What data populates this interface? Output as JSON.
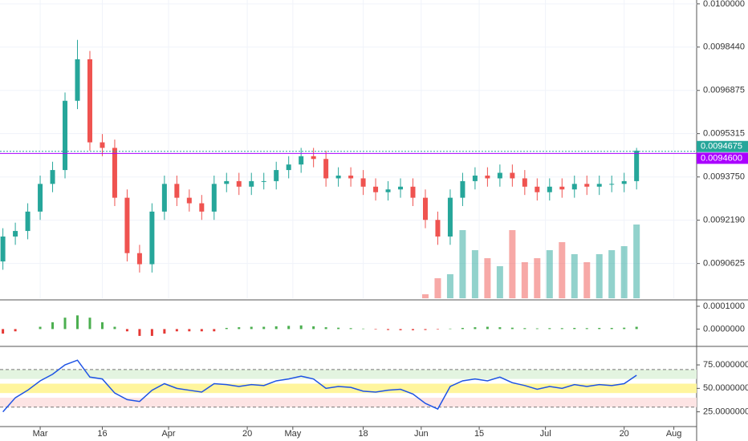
{
  "chart_data": [
    {
      "type": "candlestick",
      "x": [
        -9,
        -6,
        -3,
        0,
        3,
        6,
        9,
        12,
        15,
        18,
        21,
        24,
        27,
        30,
        33,
        36,
        39,
        42,
        45,
        48,
        51,
        54,
        57,
        60,
        63,
        66,
        69,
        72,
        75,
        78,
        81,
        84,
        87,
        90,
        93,
        96,
        99,
        102,
        105,
        108,
        111,
        114,
        117,
        120,
        123,
        126,
        129,
        132,
        135,
        138,
        141,
        144
      ],
      "open": [
        0.00907,
        0.00916,
        0.00918,
        0.00925,
        0.00935,
        0.0094,
        0.00965,
        0.0098,
        0.0095,
        0.00948,
        0.0093,
        0.0091,
        0.00906,
        0.00925,
        0.00935,
        0.0093,
        0.00928,
        0.00925,
        0.00935,
        0.00936,
        0.00934,
        0.00936,
        0.00936,
        0.0094,
        0.00942,
        0.00945,
        0.00944,
        0.00937,
        0.00938,
        0.00937,
        0.00934,
        0.00932,
        0.00933,
        0.00934,
        0.0093,
        0.00922,
        0.00916,
        0.0093,
        0.00936,
        0.00938,
        0.00937,
        0.00939,
        0.00937,
        0.00934,
        0.00932,
        0.00934,
        0.00933,
        0.00935,
        0.00934,
        0.00935,
        0.00935,
        0.00936
      ],
      "high": [
        0.00919,
        0.00921,
        0.00928,
        0.00938,
        0.00943,
        0.00968,
        0.00987,
        0.00983,
        0.00953,
        0.00951,
        0.00933,
        0.00913,
        0.00928,
        0.00938,
        0.00938,
        0.00933,
        0.00931,
        0.00938,
        0.00939,
        0.00939,
        0.00939,
        0.00939,
        0.00943,
        0.00945,
        0.00948,
        0.00948,
        0.00947,
        0.00941,
        0.00941,
        0.0094,
        0.00937,
        0.00936,
        0.00937,
        0.00937,
        0.00933,
        0.00925,
        0.00933,
        0.00939,
        0.00941,
        0.00941,
        0.00942,
        0.00942,
        0.0094,
        0.00937,
        0.00937,
        0.00937,
        0.00938,
        0.00938,
        0.00938,
        0.00938,
        0.00939,
        0.00948
      ],
      "low": [
        0.00904,
        0.00913,
        0.00915,
        0.00922,
        0.00932,
        0.00937,
        0.00962,
        0.00947,
        0.00945,
        0.00927,
        0.00907,
        0.00903,
        0.00903,
        0.00922,
        0.00927,
        0.00925,
        0.00922,
        0.00922,
        0.00932,
        0.00931,
        0.00931,
        0.00933,
        0.00933,
        0.00937,
        0.00939,
        0.00941,
        0.00934,
        0.00934,
        0.00934,
        0.00931,
        0.00929,
        0.00929,
        0.0093,
        0.00927,
        0.00919,
        0.00913,
        0.00913,
        0.00927,
        0.00933,
        0.00934,
        0.00934,
        0.00934,
        0.00931,
        0.00929,
        0.00929,
        0.0093,
        0.0093,
        0.00931,
        0.00931,
        0.00932,
        0.00932,
        0.00933
      ],
      "close": [
        0.00916,
        0.00918,
        0.00925,
        0.00935,
        0.0094,
        0.00965,
        0.0098,
        0.0095,
        0.00948,
        0.0093,
        0.0091,
        0.00906,
        0.00925,
        0.00935,
        0.0093,
        0.00928,
        0.00925,
        0.00935,
        0.00936,
        0.00934,
        0.00936,
        0.00936,
        0.0094,
        0.00942,
        0.00945,
        0.00944,
        0.00937,
        0.00938,
        0.00937,
        0.00934,
        0.00932,
        0.00933,
        0.00934,
        0.0093,
        0.00922,
        0.00916,
        0.0093,
        0.00936,
        0.00938,
        0.00937,
        0.00939,
        0.00937,
        0.00934,
        0.00932,
        0.00934,
        0.00933,
        0.00935,
        0.00934,
        0.00935,
        0.00935,
        0.00936,
        0.00947
      ],
      "up_color": "#26a69a",
      "down_color": "#ef5350",
      "volume": [
        0,
        0,
        0,
        0,
        0,
        0,
        0,
        0,
        0,
        0,
        0,
        0,
        0,
        0,
        0,
        0,
        0,
        0,
        0,
        0,
        0,
        0,
        0,
        0,
        0,
        0,
        0,
        0,
        0,
        0,
        0,
        0,
        0,
        0,
        5,
        25,
        30,
        85,
        60,
        50,
        40,
        85,
        45,
        50,
        60,
        70,
        55,
        45,
        55,
        60,
        65,
        92
      ],
      "volume_lim": [
        0,
        100
      ],
      "xlim": [
        -9.7,
        158.5
      ],
      "ylim": [
        0.008937,
        0.010014
      ],
      "yticks": [
        {
          "value": 0.01,
          "label": "0.0100000"
        },
        {
          "value": 0.009844,
          "label": "0.0098440"
        },
        {
          "value": 0.0096875,
          "label": "0.0096875"
        },
        {
          "value": 0.0095315,
          "label": "0.0095315"
        },
        {
          "value": 0.009375,
          "label": "0.0093750"
        },
        {
          "value": 0.009219,
          "label": "0.0092190"
        },
        {
          "value": 0.0090625,
          "label": "0.0090625"
        }
      ],
      "price_lines": [
        {
          "value": 0.0094675,
          "label": "0.0094675",
          "color": "#26a69a"
        },
        {
          "value": 0.00946,
          "label": "0.0094600",
          "color": "#aa00ff"
        }
      ],
      "grid": true
    },
    {
      "type": "bar",
      "values": [
        -2e-05,
        -1e-05,
        0.0,
        1e-05,
        3e-05,
        5e-05,
        6e-05,
        5e-05,
        3e-05,
        1e-05,
        -1e-05,
        -3e-05,
        -3e-05,
        -2e-05,
        -1e-05,
        -1e-05,
        -1e-05,
        -1e-05,
        5e-06,
        8e-06,
        1e-05,
        1e-05,
        1.2e-05,
        1.4e-05,
        1.6e-05,
        1.2e-05,
        8e-06,
        6e-06,
        4e-06,
        2e-06,
        -2e-06,
        -4e-06,
        -5e-06,
        -5e-06,
        -4e-06,
        -2e-06,
        2e-06,
        5e-06,
        8e-06,
        1e-05,
        8e-06,
        6e-06,
        4e-06,
        3e-06,
        4e-06,
        4e-06,
        5e-06,
        4e-06,
        5e-06,
        5e-06,
        6e-06,
        1e-05
      ],
      "up_color": "#4caf50",
      "down_color": "#e53935",
      "ylim": [
        -6.9e-05,
        0.000121
      ],
      "yticks": [
        {
          "value": 0.0001,
          "label": "0.0001000"
        },
        {
          "value": 0.0,
          "label": "0.0000000"
        }
      ]
    },
    {
      "type": "line",
      "values": [
        25,
        40,
        48,
        58,
        65,
        75,
        80,
        62,
        60,
        45,
        38,
        36,
        48,
        55,
        50,
        48,
        46,
        55,
        54,
        52,
        54,
        53,
        58,
        60,
        63,
        60,
        50,
        52,
        51,
        47,
        46,
        48,
        49,
        44,
        34,
        28,
        52,
        58,
        60,
        58,
        62,
        56,
        53,
        49,
        52,
        50,
        54,
        52,
        54,
        53,
        55,
        64
      ],
      "color": "#1e53e5",
      "ylim": [
        11,
        93
      ],
      "yticks": [
        {
          "value": 75,
          "label": "75.0000000"
        },
        {
          "value": 50,
          "label": "50.0000000"
        },
        {
          "value": 25,
          "label": "25.0000000"
        }
      ],
      "bands": [
        70,
        30
      ],
      "zones": [
        {
          "from": 60,
          "to": 70,
          "color": "#e3f4e0"
        },
        {
          "from": 45,
          "to": 55,
          "color": "#fff59d"
        },
        {
          "from": 30,
          "to": 40,
          "color": "#fde4e4"
        }
      ],
      "xticks": [
        {
          "value": 0,
          "label": "Mar"
        },
        {
          "value": 15,
          "label": "16"
        },
        {
          "value": 31,
          "label": "Apr"
        },
        {
          "value": 50,
          "label": "20"
        },
        {
          "value": 61,
          "label": "May"
        },
        {
          "value": 78,
          "label": "18"
        },
        {
          "value": 92,
          "label": "Jun"
        },
        {
          "value": 106,
          "label": "15"
        },
        {
          "value": 122,
          "label": "Jul"
        },
        {
          "value": 141,
          "label": "20"
        },
        {
          "value": 153,
          "label": "Aug"
        }
      ]
    }
  ]
}
